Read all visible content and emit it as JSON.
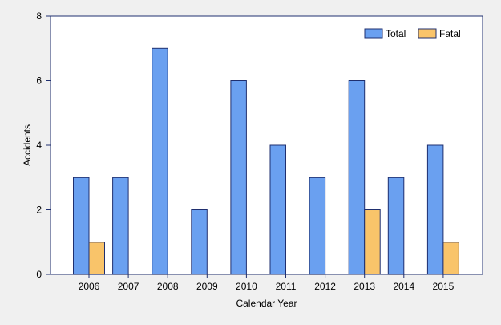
{
  "chart_data": {
    "type": "bar",
    "title": "",
    "xlabel": "Calendar Year",
    "ylabel": "Accidents",
    "categories": [
      "2006",
      "2007",
      "2008",
      "2009",
      "2010",
      "2011",
      "2012",
      "2013",
      "2014",
      "2015"
    ],
    "series": [
      {
        "name": "Total",
        "color": "#6aa0f0",
        "values": [
          3,
          3,
          7,
          2,
          6,
          4,
          3,
          6,
          3,
          4
        ]
      },
      {
        "name": "Fatal",
        "color": "#f9c46a",
        "values": [
          1,
          0,
          0,
          0,
          0,
          0,
          0,
          2,
          0,
          1
        ]
      }
    ],
    "ylim": [
      0,
      8
    ],
    "yticks": [
      "0",
      "2",
      "4",
      "6",
      "8"
    ],
    "grid": false,
    "legend_position": "top-right",
    "colors": {
      "plot_background": "#ffffff",
      "page_background": "#f0f0f0",
      "axis": "#1f2f6f",
      "bar_stroke": "#1f2f6f"
    }
  }
}
